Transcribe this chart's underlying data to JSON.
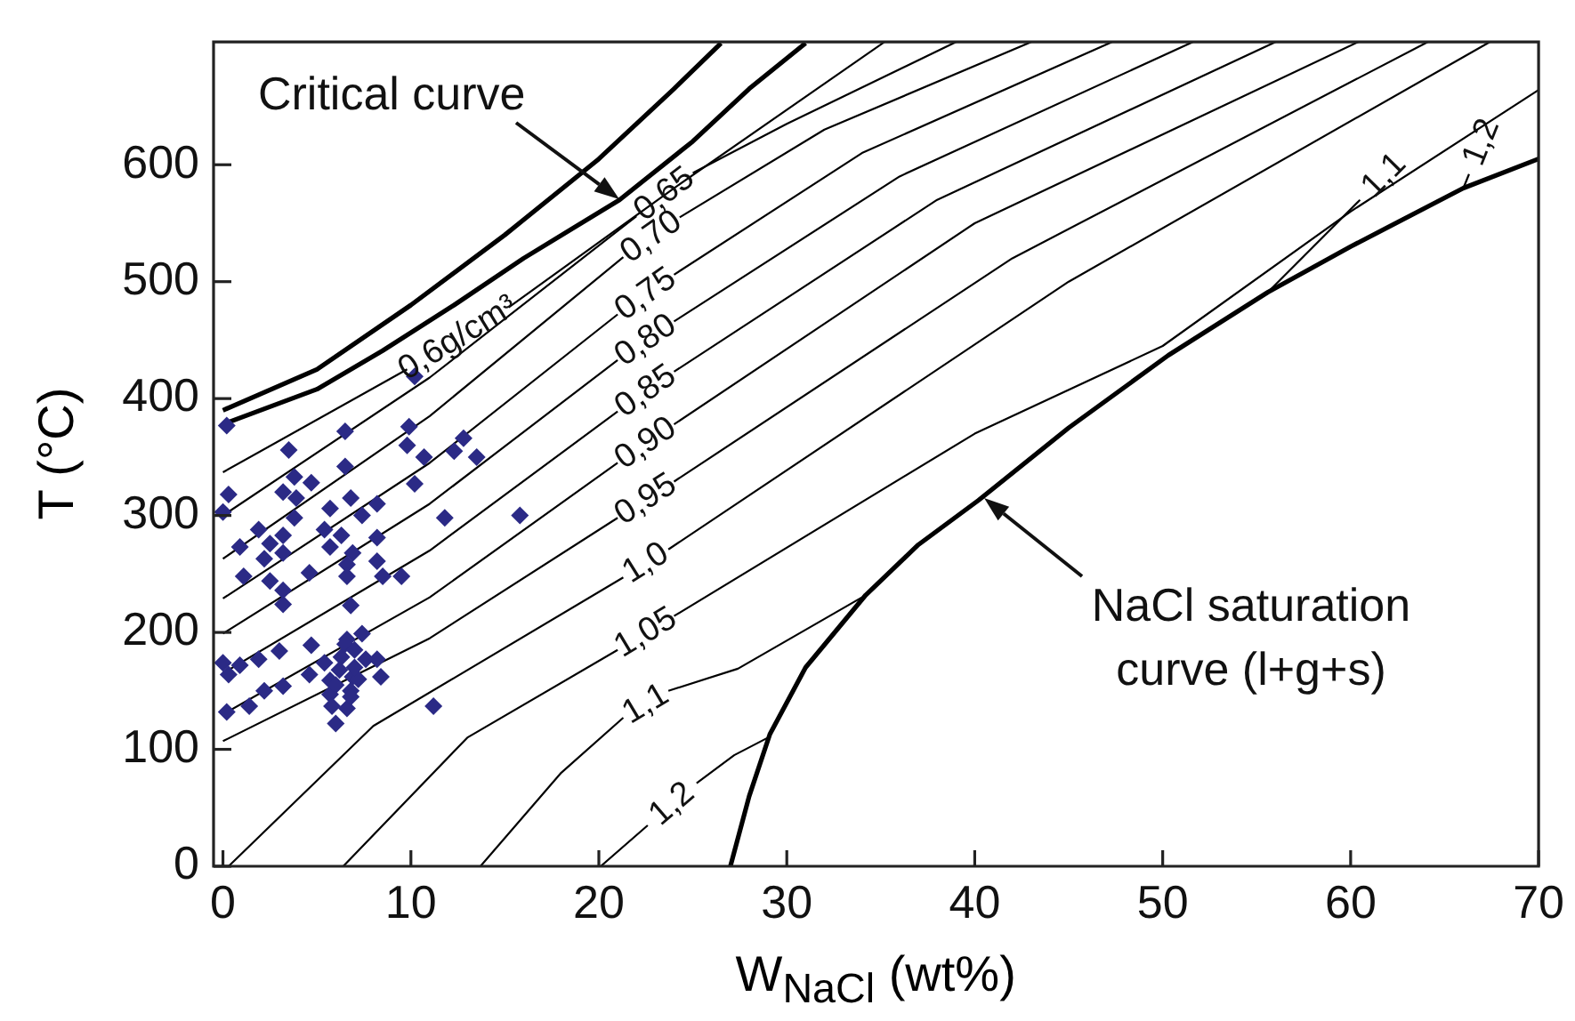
{
  "chart_data": {
    "type": "scatter",
    "xlabel": "W$_{NaCl}$ (wt%)",
    "ylabel": "T (°C)",
    "xlim": [
      -0.5,
      70
    ],
    "ylim": [
      0,
      705
    ],
    "xticks": [
      0,
      10,
      20,
      30,
      40,
      50,
      60,
      70
    ],
    "yticks": [
      0,
      100,
      200,
      300,
      400,
      500,
      600
    ],
    "grid": false,
    "legend": false,
    "series": [
      {
        "type": "line",
        "color": "#000000",
        "x": [
          0,
          5,
          10,
          15,
          20,
          24,
          26.5
        ],
        "values": [
          390,
          425,
          480,
          540,
          605,
          665,
          704
        ]
      },
      {
        "type": "line",
        "color": "#000000",
        "x": [
          0,
          5,
          8.5,
          12.3,
          16,
          21.1,
          25,
          28,
          31
        ],
        "values": [
          378,
          408,
          441,
          480,
          520,
          570,
          620,
          665,
          704
        ]
      },
      {
        "type": "line",
        "color": "#000000",
        "x": [
          27,
          28,
          29.1,
          31,
          34.2,
          37,
          40.2,
          45,
          50.3,
          55.6,
          60,
          66,
          70
        ],
        "values": [
          0,
          60,
          113,
          170,
          232,
          275,
          313,
          375,
          437,
          491,
          530,
          580,
          605
        ]
      },
      {
        "type": "line",
        "name": "0,6g/cm³",
        "color": "#000000",
        "x": [
          0,
          9.8,
          12.5,
          15.2,
          24,
          35.2
        ],
        "values": [
          337,
          425,
          null,
          478,
          580,
          705
        ]
      },
      {
        "type": "line",
        "name": "0,65",
        "color": "#000000",
        "x": [
          0,
          11,
          22,
          23.5,
          25,
          30,
          39
        ],
        "values": [
          300,
          418,
          556,
          null,
          593,
          635,
          705
        ]
      },
      {
        "type": "line",
        "name": "0,70",
        "color": "#000000",
        "x": [
          0,
          11,
          21.3,
          22.8,
          24.3,
          32,
          43
        ],
        "values": [
          263,
          385,
          521,
          null,
          555,
          630,
          705
        ]
      },
      {
        "type": "line",
        "name": "0,75",
        "color": "#000000",
        "x": [
          0,
          11,
          21,
          22.5,
          24,
          34,
          47.3
        ],
        "values": [
          229,
          345,
          472,
          null,
          506,
          610,
          705
        ]
      },
      {
        "type": "line",
        "name": "0,80",
        "color": "#000000",
        "x": [
          0,
          11,
          21,
          22.5,
          24,
          36,
          51.6
        ],
        "values": [
          199,
          310,
          433,
          null,
          466,
          590,
          705
        ]
      },
      {
        "type": "line",
        "name": "0,85",
        "color": "#000000",
        "x": [
          0,
          11,
          21,
          22.5,
          24,
          38,
          56
        ],
        "values": [
          165,
          270,
          389,
          null,
          423,
          570,
          705
        ]
      },
      {
        "type": "line",
        "name": "0,90",
        "color": "#000000",
        "x": [
          0,
          11,
          21,
          22.5,
          24,
          40,
          60.4
        ],
        "values": [
          130,
          230,
          345,
          null,
          378,
          550,
          705
        ]
      },
      {
        "type": "line",
        "name": "0,95",
        "color": "#000000",
        "x": [
          0,
          11,
          21,
          22.5,
          24,
          42,
          64.1
        ],
        "values": [
          107,
          195,
          298,
          null,
          329,
          520,
          705
        ]
      },
      {
        "type": "line",
        "name": "1,0",
        "color": "#000000",
        "x": [
          0.3,
          8,
          21.3,
          22.5,
          23.7,
          45,
          67.4
        ],
        "values": [
          0,
          120,
          247,
          null,
          271,
          500,
          705
        ]
      },
      {
        "type": "line",
        "name": "1,05",
        "color": "#000000",
        "x": [
          6.4,
          13,
          21,
          22.5,
          24,
          40,
          50,
          60,
          70
        ],
        "values": [
          0,
          110,
          185,
          null,
          214,
          370,
          445,
          560,
          664
        ]
      },
      {
        "type": "line",
        "name": "1,1",
        "color": "#000000",
        "x": [
          13.7,
          18,
          21.3,
          22.5,
          23.7,
          27.4,
          34
        ],
        "values": [
          0,
          80,
          127,
          null,
          150,
          169,
          230
        ]
      },
      {
        "type": "line",
        "name": "1,2",
        "color": "#000000",
        "x": [
          20.1,
          22.6,
          23.9,
          25.2,
          27.2,
          29
        ],
        "values": [
          0,
          35,
          null,
          71,
          95,
          110
        ]
      },
      {
        "type": "line",
        "name": "1,1",
        "color": "#000000",
        "x": [
          55.6,
          60.5
        ],
        "values": [
          491,
          570
        ]
      },
      {
        "type": "line",
        "name": "1,2",
        "color": "#000000",
        "x": [
          66,
          66.3
        ],
        "values": [
          580,
          592
        ]
      },
      {
        "type": "scatter",
        "color": "#2b2a86",
        "marker": "diamond",
        "x": [
          0.2,
          6.5,
          9.9,
          3.5,
          9.8,
          10.7,
          12.8,
          12.3,
          13.5,
          6.5,
          3.8,
          4.7,
          3.2,
          3.9,
          10.2,
          0.3,
          0,
          6.8,
          5.7,
          8.2,
          7.4,
          11.8,
          15.8,
          3.8,
          1.9,
          3.2,
          0.9,
          2.5,
          5.4,
          6.3,
          5.7,
          6.9,
          8.2,
          2.2,
          3.2,
          8.2,
          1.1,
          4.6,
          6.6,
          6.6,
          9.5,
          8.5,
          2.5,
          3.2,
          3.2,
          6.8,
          3.0,
          4.7,
          6.6,
          7.4,
          0,
          0.9,
          1.9,
          0.3,
          5.4,
          6.3,
          7.6,
          8.2,
          4.6,
          5.7,
          6.9,
          8.4,
          2.2,
          3.2,
          5.7,
          6.8,
          0.2,
          1.4,
          5.8,
          6.6,
          11.2,
          6.0,
          10.2,
          6.5,
          7,
          6.2,
          7.2,
          6.8,
          6,
          7
        ],
        "values": [
          377,
          372,
          376,
          356,
          360,
          350,
          366,
          355,
          350,
          342,
          333,
          328,
          320,
          315,
          327,
          318,
          303,
          315,
          306,
          310,
          300,
          298,
          300,
          298,
          288,
          283,
          273,
          276,
          288,
          283,
          273,
          268,
          281,
          263,
          268,
          261,
          248,
          251,
          258,
          248,
          248,
          248,
          244,
          236,
          224,
          223,
          184,
          189,
          194,
          199,
          174,
          172,
          177,
          164,
          174,
          179,
          177,
          177,
          164,
          159,
          162,
          162,
          150,
          154,
          147,
          150,
          132,
          137,
          137,
          135,
          137,
          122,
          419,
          190,
          185,
          168,
          160,
          145,
          155,
          170
        ]
      }
    ],
    "annotations": [
      {
        "text": "Critical curve",
        "x": 21.1,
        "y": 570
      },
      {
        "text": "NaCl saturation curve (l+g+s)",
        "x": 40.5,
        "y": 315
      }
    ]
  }
}
